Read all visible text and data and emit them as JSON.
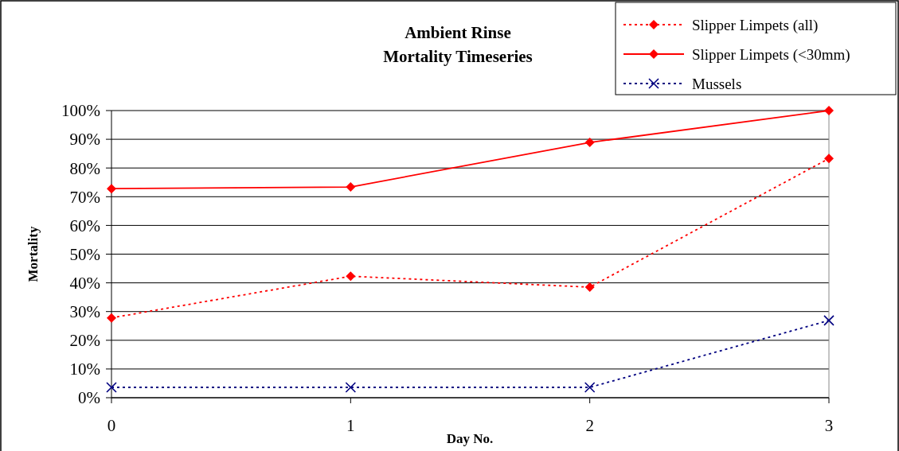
{
  "chart_data": {
    "type": "line",
    "title": "Ambient Rinse\nMortality Timeseries",
    "xlabel": "Day No.",
    "ylabel": "Mortality",
    "x": [
      0,
      1,
      2,
      3
    ],
    "xlim": [
      0,
      3
    ],
    "xticks": [
      0,
      1,
      2,
      3
    ],
    "ylim": [
      0,
      100
    ],
    "yticks": [
      {
        "value": 0,
        "label": "0%"
      },
      {
        "value": 10,
        "label": "10%"
      },
      {
        "value": 20,
        "label": "20%"
      },
      {
        "value": 30,
        "label": "30%"
      },
      {
        "value": 40,
        "label": "40%"
      },
      {
        "value": 50,
        "label": "50%"
      },
      {
        "value": 60,
        "label": "60%"
      },
      {
        "value": 70,
        "label": "70%"
      },
      {
        "value": 80,
        "label": "80%"
      },
      {
        "value": 90,
        "label": "90%"
      },
      {
        "value": 100,
        "label": "100%"
      }
    ],
    "grid": "y",
    "legend": "top right",
    "series": [
      {
        "name": "Slipper Limpets (all)",
        "color": "#ff0000",
        "marker": "diamond",
        "line_style": "dotted",
        "values": [
          27.8,
          42.3,
          38.5,
          83.3
        ]
      },
      {
        "name": "Slipper Limpets (<30mm)",
        "color": "#ff0000",
        "marker": "diamond",
        "line_style": "solid",
        "values": [
          72.8,
          73.4,
          88.9,
          100
        ]
      },
      {
        "name": "Mussels",
        "color": "#000080",
        "marker": "cross",
        "line_style": "dotted",
        "values": [
          3.6,
          3.6,
          3.6,
          26.9
        ]
      }
    ]
  }
}
